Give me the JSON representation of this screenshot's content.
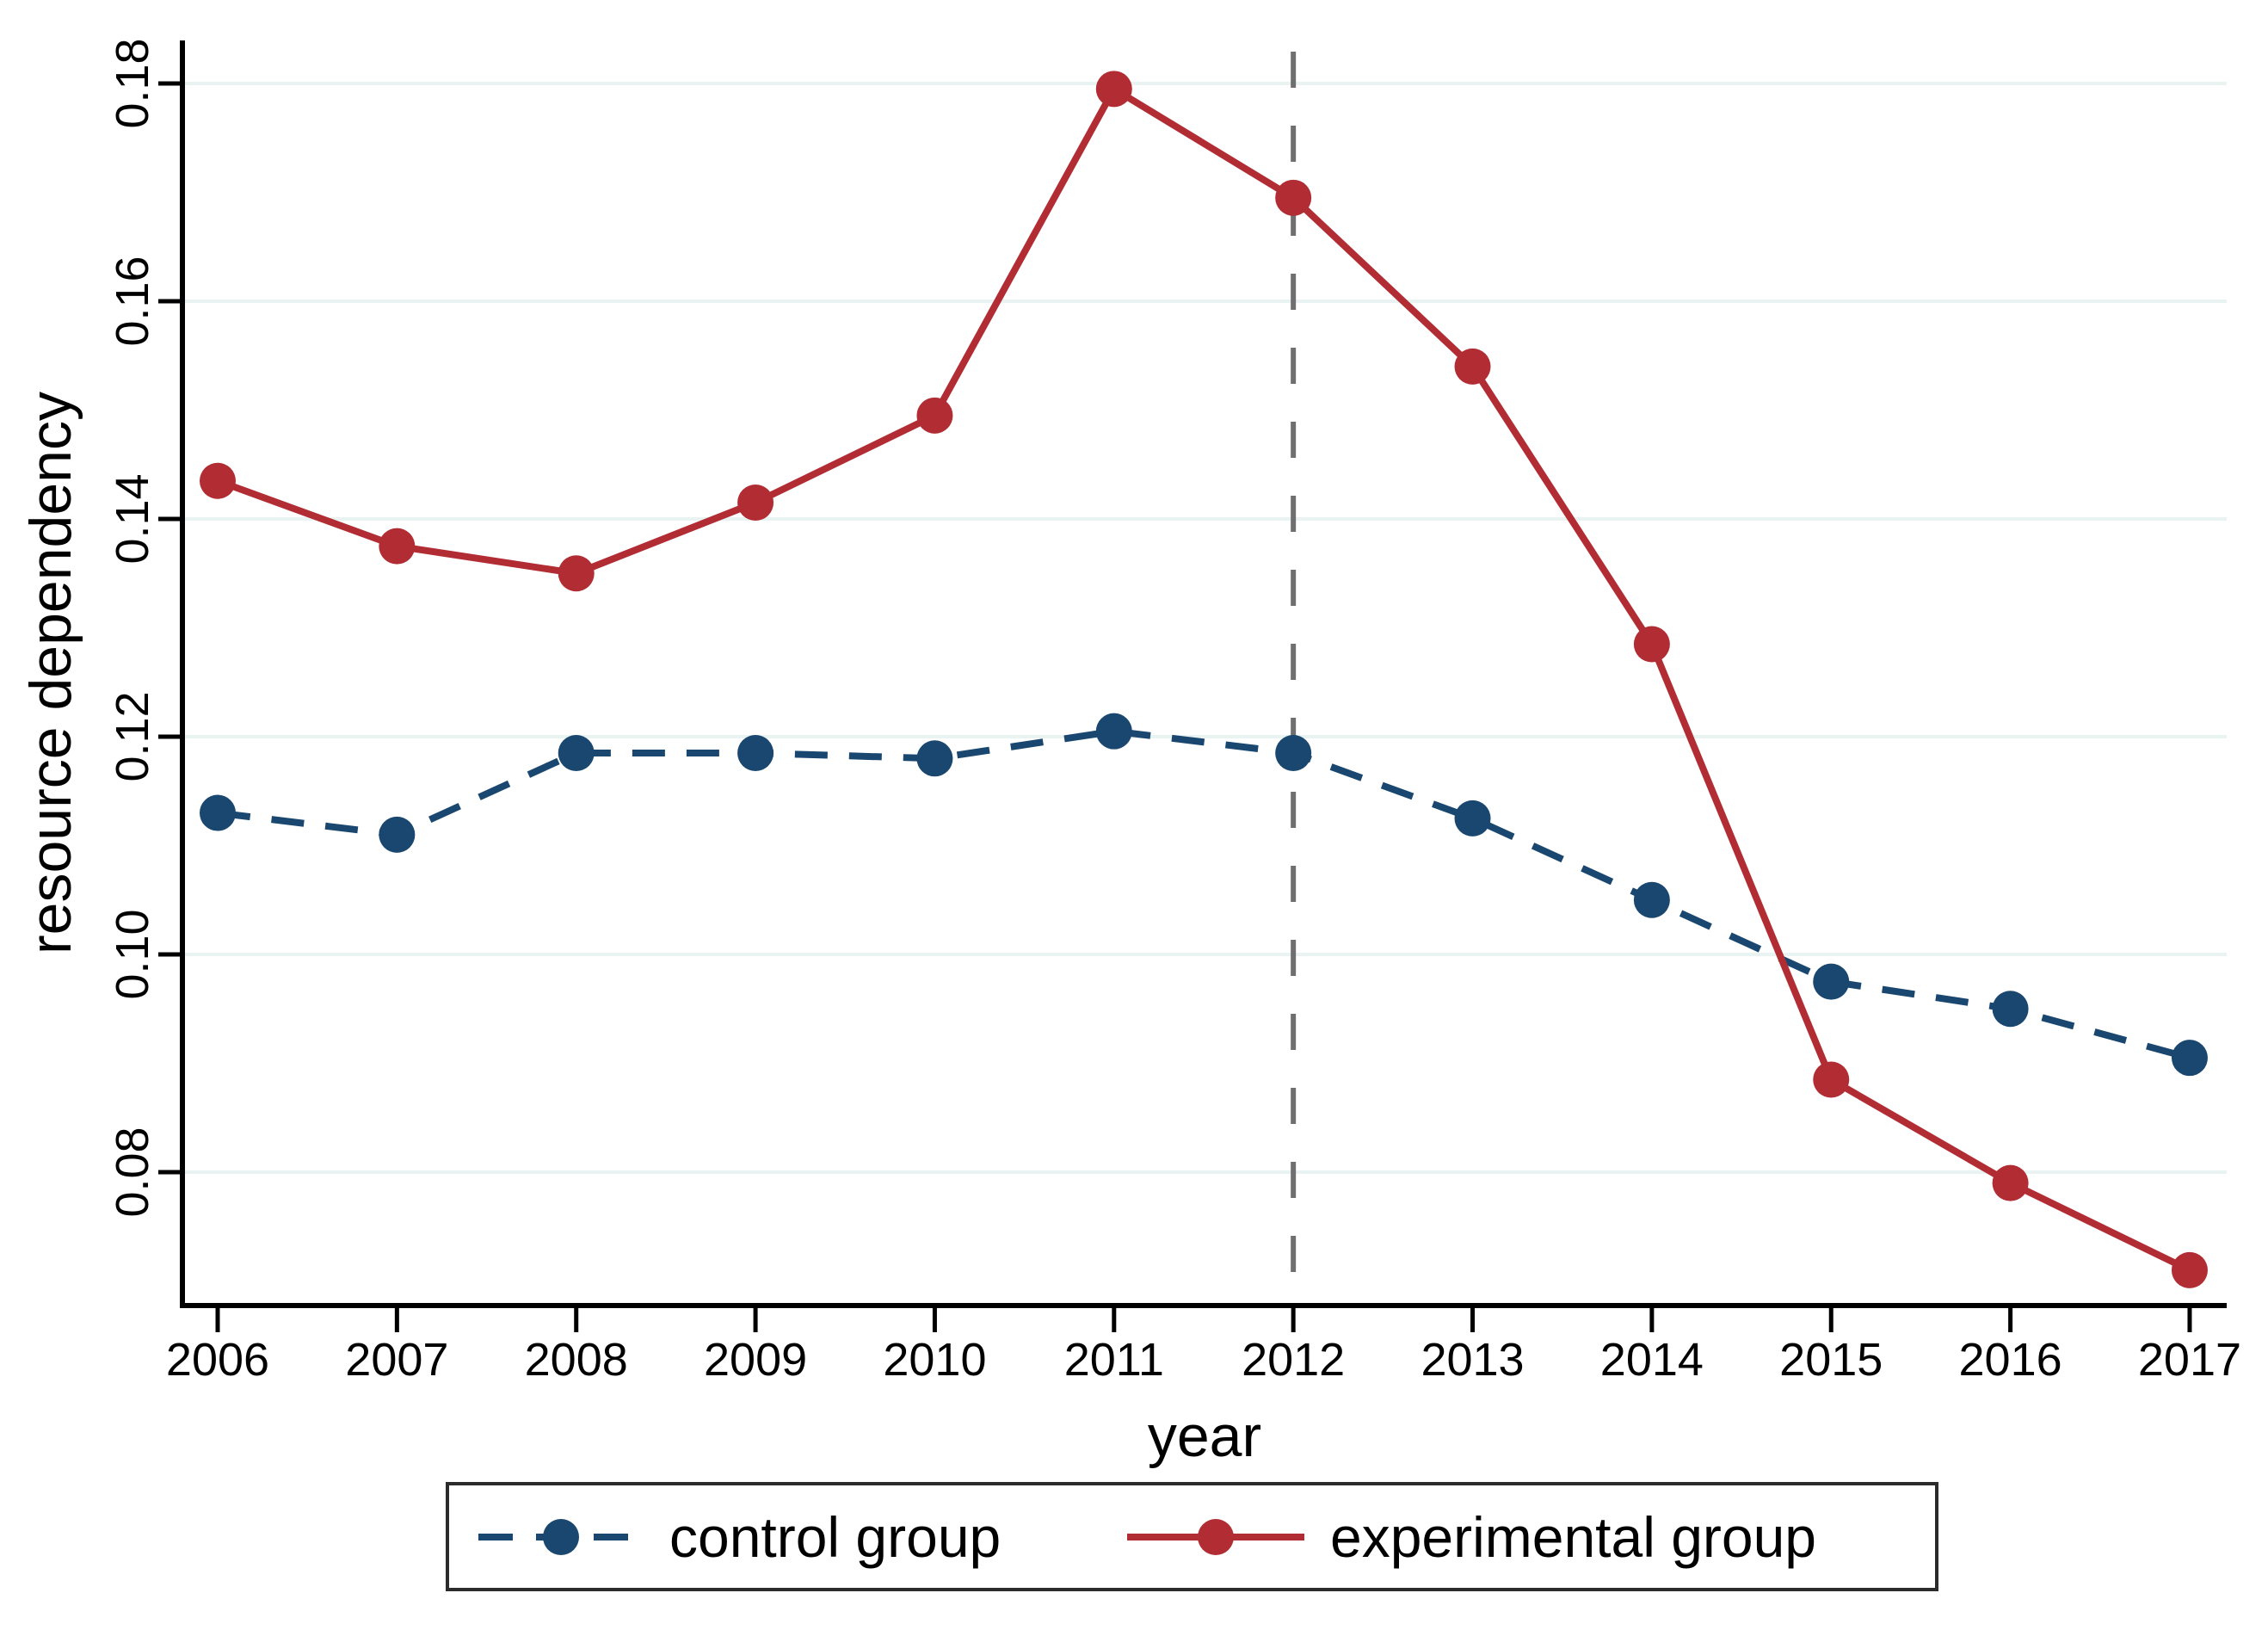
{
  "chart_data": {
    "type": "line",
    "title": "",
    "xlabel": "year",
    "ylabel": "resource dependency",
    "categories": [
      "2006",
      "2007",
      "2008",
      "2009",
      "2010",
      "2011",
      "2012",
      "2013",
      "2014",
      "2015",
      "2016",
      "2017"
    ],
    "x_years": [
      2006,
      2007,
      2008,
      2009,
      2010,
      2011,
      2012,
      2013,
      2014,
      2015,
      2016,
      2017
    ],
    "y_ticks": [
      0.08,
      0.1,
      0.12,
      0.14,
      0.16,
      0.18
    ],
    "y_tick_labels": [
      "0.08",
      "0.10",
      "0.12",
      "0.14",
      "0.16",
      "0.18"
    ],
    "ylim": [
      0.0677,
      0.184
    ],
    "xlim": [
      2005.8,
      2017.2
    ],
    "grid": "horizontal",
    "legend_position": "bottom",
    "reference_line": {
      "x": 2012,
      "style": "dashed"
    },
    "series": [
      {
        "name": "control group",
        "line_style": "dashed",
        "marker": "circle",
        "color": "#1a476f",
        "values": [
          0.113,
          0.111,
          0.1185,
          0.1185,
          0.118,
          0.1205,
          0.1185,
          0.1125,
          0.105,
          0.0975,
          0.095,
          0.0905
        ]
      },
      {
        "name": "experimental group",
        "line_style": "solid",
        "marker": "circle",
        "color": "#b22c34",
        "values": [
          0.1435,
          0.1375,
          0.135,
          0.1415,
          0.1495,
          0.1795,
          0.1695,
          0.154,
          0.1285,
          0.0885,
          0.079,
          0.071
        ]
      }
    ],
    "colors": {
      "grid": "#e9f3f2",
      "axis": "#000000",
      "reference_line": "#6f6f6f",
      "background": "#ffffff"
    }
  }
}
